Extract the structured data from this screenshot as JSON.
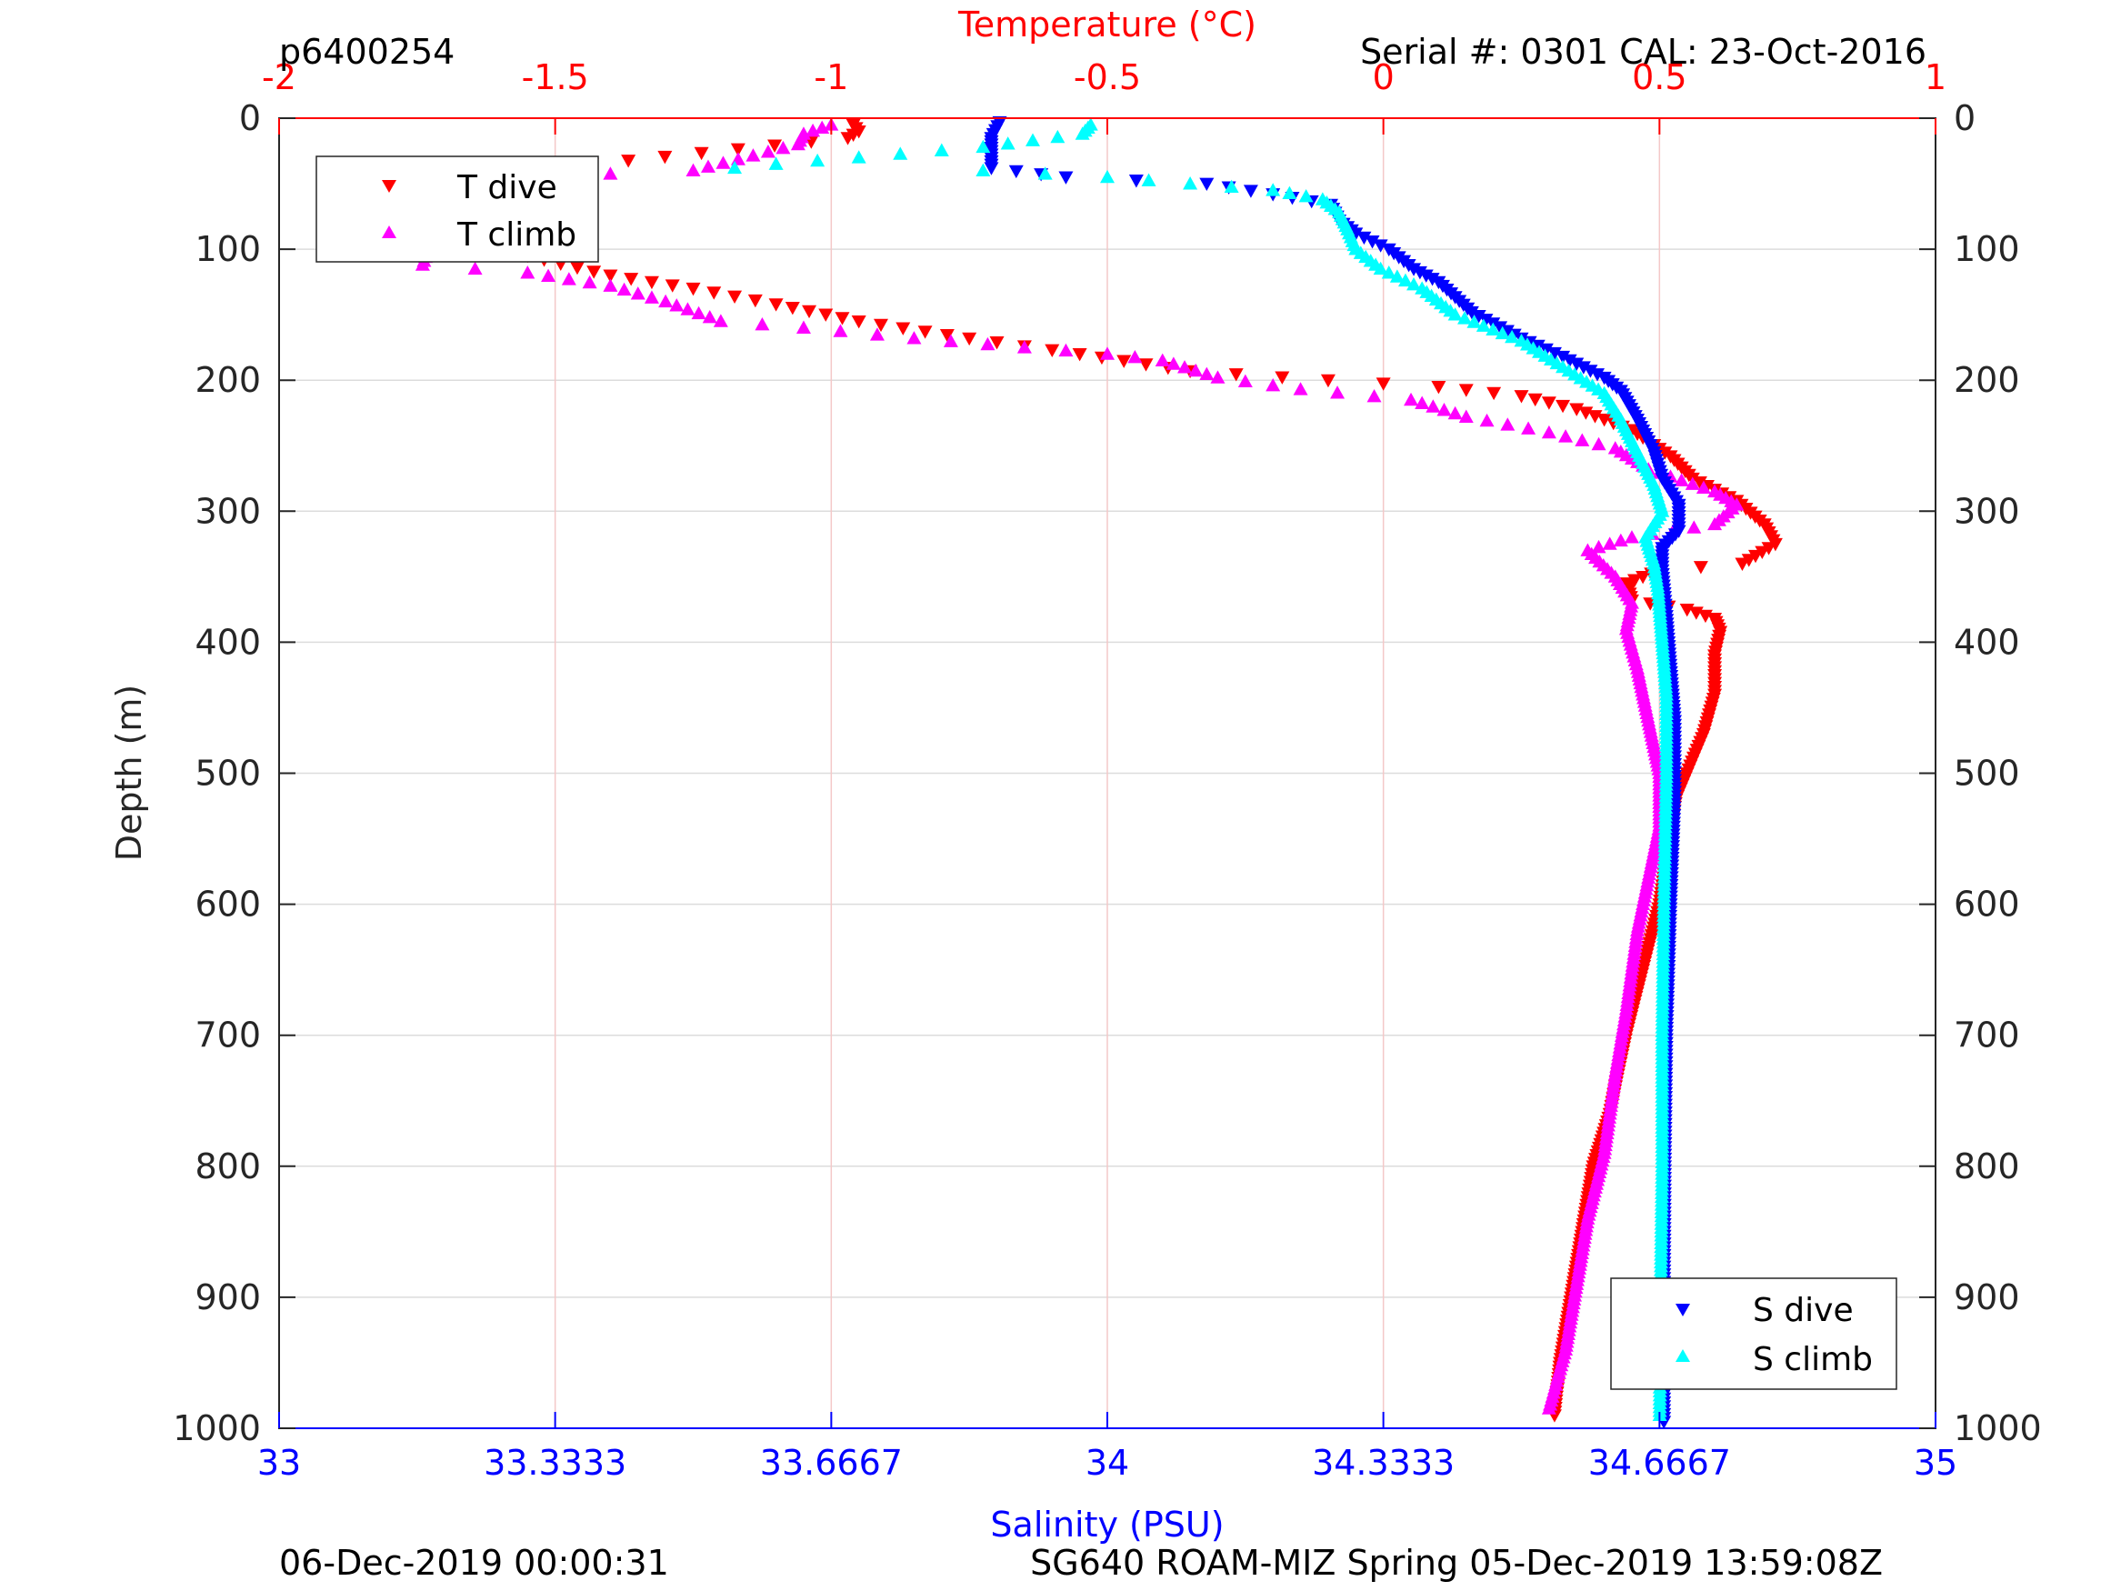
{
  "header": {
    "dive_id": "p6400254",
    "serial": "Serial #: 0301  CAL: 23-Oct-2016"
  },
  "footer": {
    "left": "06-Dec-2019 00:00:31",
    "right": "SG640 ROAM-MIZ Spring 05-Dec-2019 13:59:08Z"
  },
  "colors": {
    "t_dive": "#ff0000",
    "t_climb": "#ff00ff",
    "s_dive": "#0000ff",
    "s_climb": "#00ffff",
    "temp_axis": "#ff0000",
    "sal_axis": "#0000ff"
  },
  "chart_data": {
    "type": "scatter",
    "title": "",
    "ylabel": "Depth (m)",
    "ylim": [
      0,
      1000
    ],
    "y_reversed": true,
    "y_ticks": [
      "0",
      "100",
      "200",
      "300",
      "400",
      "500",
      "600",
      "700",
      "800",
      "900",
      "1000"
    ],
    "temp_axis": {
      "label": "Temperature (°C)",
      "position": "top",
      "range": [
        -2,
        1
      ],
      "ticks": [
        "-2",
        "-1.5",
        "-1",
        "-0.5",
        "0",
        "0.5",
        "1"
      ],
      "grid": true
    },
    "sal_axis": {
      "label": "Salinity (PSU)",
      "position": "bottom",
      "range": [
        33,
        35
      ],
      "ticks": [
        "33",
        "33.3333",
        "33.6667",
        "34",
        "34.3333",
        "34.6667",
        "35"
      ],
      "grid": false
    },
    "grid_y": true,
    "legends": [
      {
        "placement": "top-left",
        "entries": [
          "T dive",
          "T climb"
        ]
      },
      {
        "placement": "bottom-right",
        "entries": [
          "S dive",
          "S climb"
        ]
      }
    ],
    "series": [
      {
        "name": "T dive",
        "axis": "temp",
        "marker": "triangle-down",
        "points": [
          [
            -0.96,
            5
          ],
          [
            -0.95,
            10
          ],
          [
            -0.97,
            15
          ],
          [
            -1.5,
            38
          ],
          [
            -1.62,
            48
          ],
          [
            -1.66,
            60
          ],
          [
            -1.67,
            72
          ],
          [
            -1.66,
            82
          ],
          [
            -1.62,
            95
          ],
          [
            -1.55,
            105
          ],
          [
            -1.4,
            120
          ],
          [
            -1.25,
            130
          ],
          [
            -1.1,
            142
          ],
          [
            -0.95,
            155
          ],
          [
            -0.75,
            168
          ],
          [
            -0.55,
            180
          ],
          [
            -0.35,
            193
          ],
          [
            -0.1,
            200
          ],
          [
            0.1,
            205
          ],
          [
            0.25,
            212
          ],
          [
            0.35,
            222
          ],
          [
            0.45,
            238
          ],
          [
            0.52,
            258
          ],
          [
            0.56,
            275
          ],
          [
            0.64,
            292
          ],
          [
            0.69,
            310
          ],
          [
            0.71,
            325
          ],
          [
            0.65,
            340
          ],
          [
            0.5,
            345
          ],
          [
            0.44,
            355
          ],
          [
            0.45,
            368
          ],
          [
            0.55,
            375
          ],
          [
            0.6,
            382
          ],
          [
            0.61,
            392
          ],
          [
            0.6,
            410
          ],
          [
            0.6,
            440
          ],
          [
            0.58,
            470
          ],
          [
            0.55,
            500
          ],
          [
            0.53,
            520
          ],
          [
            0.52,
            545
          ],
          [
            0.5,
            600
          ],
          [
            0.47,
            650
          ],
          [
            0.44,
            700
          ],
          [
            0.41,
            760
          ],
          [
            0.38,
            800
          ],
          [
            0.36,
            850
          ],
          [
            0.34,
            900
          ],
          [
            0.32,
            950
          ],
          [
            0.31,
            990
          ]
        ]
      },
      {
        "name": "T climb",
        "axis": "temp",
        "marker": "triangle-up",
        "points": [
          [
            -1.0,
            5
          ],
          [
            -1.05,
            12
          ],
          [
            -1.06,
            20
          ],
          [
            -1.25,
            40
          ],
          [
            -1.55,
            45
          ],
          [
            -1.73,
            55
          ],
          [
            -1.75,
            70
          ],
          [
            -1.76,
            90
          ],
          [
            -1.73,
            100
          ],
          [
            -1.74,
            112
          ],
          [
            -1.55,
            118
          ],
          [
            -1.4,
            128
          ],
          [
            -1.3,
            140
          ],
          [
            -1.2,
            155
          ],
          [
            -1.05,
            160
          ],
          [
            -0.85,
            168
          ],
          [
            -0.65,
            175
          ],
          [
            -0.5,
            180
          ],
          [
            -0.4,
            185
          ],
          [
            -0.3,
            198
          ],
          [
            -0.15,
            207
          ],
          [
            0.05,
            215
          ],
          [
            0.15,
            228
          ],
          [
            0.3,
            240
          ],
          [
            0.42,
            252
          ],
          [
            0.48,
            268
          ],
          [
            0.6,
            285
          ],
          [
            0.64,
            295
          ],
          [
            0.6,
            310
          ],
          [
            0.45,
            320
          ],
          [
            0.37,
            330
          ],
          [
            0.42,
            350
          ],
          [
            0.45,
            370
          ],
          [
            0.44,
            390
          ],
          [
            0.46,
            420
          ],
          [
            0.48,
            460
          ],
          [
            0.5,
            500
          ],
          [
            0.5,
            540
          ],
          [
            0.48,
            580
          ],
          [
            0.46,
            620
          ],
          [
            0.44,
            680
          ],
          [
            0.42,
            730
          ],
          [
            0.4,
            790
          ],
          [
            0.37,
            840
          ],
          [
            0.35,
            890
          ],
          [
            0.33,
            940
          ],
          [
            0.3,
            985
          ]
        ]
      },
      {
        "name": "S dive",
        "axis": "sal",
        "marker": "triangle-down",
        "points": [
          [
            33.87,
            3
          ],
          [
            33.86,
            15
          ],
          [
            33.86,
            25
          ],
          [
            33.86,
            38
          ],
          [
            33.95,
            45
          ],
          [
            34.12,
            50
          ],
          [
            34.2,
            58
          ],
          [
            34.27,
            66
          ],
          [
            34.28,
            78
          ],
          [
            34.3,
            88
          ],
          [
            34.34,
            100
          ],
          [
            34.37,
            115
          ],
          [
            34.4,
            125
          ],
          [
            34.44,
            148
          ],
          [
            34.5,
            168
          ],
          [
            34.55,
            182
          ],
          [
            34.6,
            198
          ],
          [
            34.62,
            208
          ],
          [
            34.64,
            230
          ],
          [
            34.66,
            255
          ],
          [
            34.67,
            275
          ],
          [
            34.69,
            295
          ],
          [
            34.69,
            315
          ],
          [
            34.67,
            328
          ],
          [
            34.67,
            345
          ],
          [
            34.675,
            380
          ],
          [
            34.68,
            420
          ],
          [
            34.685,
            460
          ],
          [
            34.685,
            520
          ],
          [
            34.68,
            600
          ],
          [
            34.675,
            700
          ],
          [
            34.673,
            800
          ],
          [
            34.672,
            900
          ],
          [
            34.672,
            995
          ]
        ]
      },
      {
        "name": "S climb",
        "axis": "sal",
        "marker": "triangle-up",
        "points": [
          [
            33.98,
            5
          ],
          [
            33.97,
            12
          ],
          [
            33.85,
            22
          ],
          [
            33.7,
            30
          ],
          [
            33.6,
            35
          ],
          [
            33.55,
            38
          ],
          [
            33.85,
            40
          ],
          [
            34.0,
            45
          ],
          [
            34.1,
            50
          ],
          [
            34.2,
            55
          ],
          [
            34.26,
            62
          ],
          [
            34.28,
            72
          ],
          [
            34.29,
            85
          ],
          [
            34.3,
            100
          ],
          [
            34.33,
            115
          ],
          [
            34.38,
            130
          ],
          [
            34.42,
            150
          ],
          [
            34.5,
            170
          ],
          [
            34.55,
            190
          ],
          [
            34.6,
            210
          ],
          [
            34.62,
            230
          ],
          [
            34.64,
            255
          ],
          [
            34.66,
            280
          ],
          [
            34.67,
            300
          ],
          [
            34.65,
            320
          ],
          [
            34.66,
            340
          ],
          [
            34.665,
            360
          ],
          [
            34.67,
            400
          ],
          [
            34.675,
            440
          ],
          [
            34.675,
            500
          ],
          [
            34.672,
            600
          ],
          [
            34.67,
            700
          ],
          [
            34.67,
            800
          ],
          [
            34.668,
            900
          ],
          [
            34.667,
            990
          ]
        ]
      }
    ]
  }
}
